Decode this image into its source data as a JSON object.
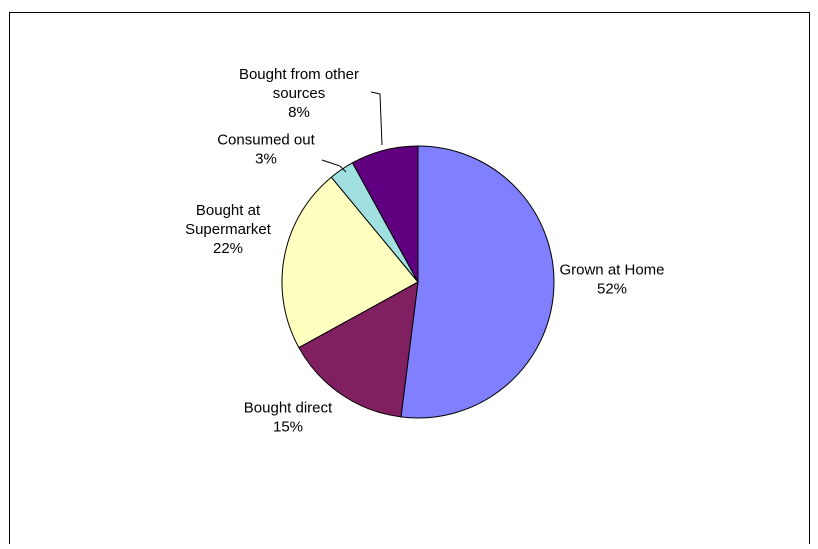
{
  "chart_data": {
    "type": "pie",
    "title": "",
    "start_angle_deg": 0,
    "direction": "clockwise",
    "slices": [
      {
        "name": "Grown at Home",
        "label_lines": [
          "Grown at Home"
        ],
        "percent_label": "52%",
        "value": 52,
        "color": "#8080FF"
      },
      {
        "name": "Bought direct",
        "label_lines": [
          "Bought direct"
        ],
        "percent_label": "15%",
        "value": 15,
        "color": "#802060"
      },
      {
        "name": "Bought at Supermarket",
        "label_lines": [
          "Bought at",
          "Supermarket"
        ],
        "percent_label": "22%",
        "value": 22,
        "color": "#FFFFC0"
      },
      {
        "name": "Consumed out",
        "label_lines": [
          "Consumed out"
        ],
        "percent_label": "3%",
        "value": 3,
        "color": "#A0E0E0"
      },
      {
        "name": "Bought from other sources",
        "label_lines": [
          "Bought from other",
          "sources"
        ],
        "percent_label": "8%",
        "value": 8,
        "color": "#600080"
      }
    ]
  }
}
